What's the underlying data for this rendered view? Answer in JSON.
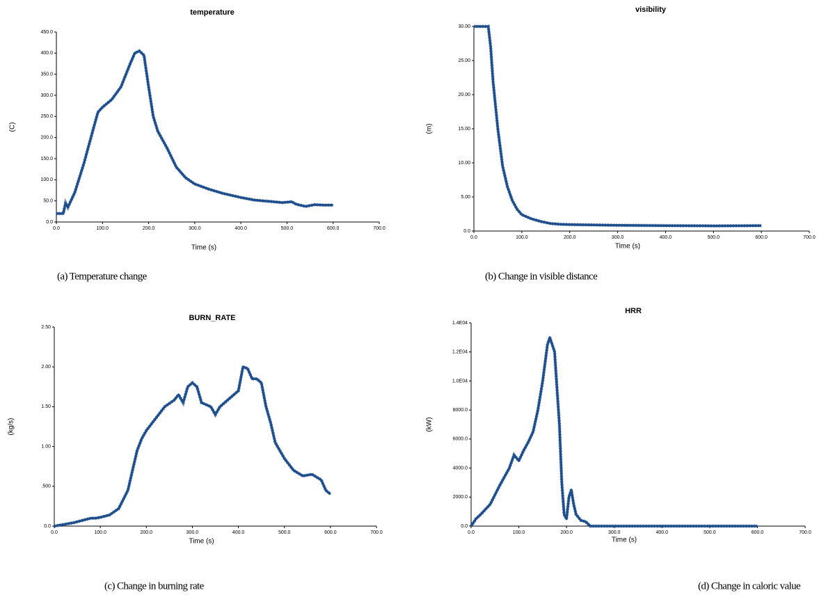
{
  "chart_data": [
    {
      "type": "line",
      "title": "temperature",
      "xlabel": "Time (s)",
      "ylabel": "(C)",
      "caption": "(a) Temperature change",
      "color": "#1f4e8c",
      "x": [
        0,
        15,
        20,
        25,
        40,
        60,
        80,
        90,
        100,
        120,
        140,
        160,
        170,
        180,
        190,
        200,
        210,
        220,
        240,
        260,
        280,
        300,
        330,
        360,
        400,
        430,
        460,
        490,
        510,
        520,
        540,
        560,
        580,
        600
      ],
      "values": [
        20,
        20,
        45,
        35,
        70,
        140,
        220,
        260,
        272,
        290,
        320,
        375,
        400,
        405,
        395,
        320,
        250,
        215,
        175,
        130,
        105,
        90,
        78,
        68,
        58,
        52,
        49,
        46,
        48,
        42,
        37,
        41,
        40,
        40
      ],
      "xlim": [
        0,
        700
      ],
      "ylim": [
        0,
        450
      ],
      "xticks": [
        {
          "value": 0,
          "label": "0.0"
        },
        {
          "value": 100,
          "label": "100.0"
        },
        {
          "value": 200,
          "label": "200.0"
        },
        {
          "value": 300,
          "label": "300.0"
        },
        {
          "value": 400,
          "label": "400.0"
        },
        {
          "value": 500,
          "label": "500.0"
        },
        {
          "value": 600,
          "label": "600.0"
        },
        {
          "value": 700,
          "label": "700.0"
        }
      ],
      "yticks": [
        {
          "value": 0,
          "label": "0.0"
        },
        {
          "value": 50,
          "label": "50.0"
        },
        {
          "value": 100,
          "label": "100.0"
        },
        {
          "value": 150,
          "label": "150.0"
        },
        {
          "value": 200,
          "label": "200.0"
        },
        {
          "value": 250,
          "label": "250.0"
        },
        {
          "value": 300,
          "label": "300.0"
        },
        {
          "value": 350,
          "label": "350.0"
        },
        {
          "value": 400,
          "label": "400.0"
        },
        {
          "value": 450,
          "label": "450.0"
        }
      ]
    },
    {
      "type": "line",
      "title": "visibility",
      "xlabel": "Time (s)",
      "ylabel": "(m)",
      "caption": "(b) Change in visible distance",
      "color": "#1f4e8c",
      "x": [
        0,
        10,
        20,
        30,
        35,
        40,
        50,
        60,
        70,
        80,
        90,
        100,
        120,
        140,
        160,
        180,
        200,
        250,
        300,
        400,
        500,
        600
      ],
      "values": [
        30,
        30,
        30,
        30,
        27,
        22,
        15,
        9.5,
        6.5,
        4.5,
        3.2,
        2.4,
        1.8,
        1.4,
        1.1,
        1.0,
        0.95,
        0.9,
        0.85,
        0.8,
        0.75,
        0.8
      ],
      "xlim": [
        0,
        700
      ],
      "ylim": [
        0,
        30
      ],
      "xticks": [
        {
          "value": 0,
          "label": "0.0"
        },
        {
          "value": 100,
          "label": "100.0"
        },
        {
          "value": 200,
          "label": "200.0"
        },
        {
          "value": 300,
          "label": "300.0"
        },
        {
          "value": 400,
          "label": "400.0"
        },
        {
          "value": 500,
          "label": "500.0"
        },
        {
          "value": 600,
          "label": "600.0"
        },
        {
          "value": 700,
          "label": "700.0"
        }
      ],
      "yticks": [
        {
          "value": 0,
          "label": "0.0"
        },
        {
          "value": 5,
          "label": "5.00"
        },
        {
          "value": 10,
          "label": "10.00"
        },
        {
          "value": 15,
          "label": "15.00"
        },
        {
          "value": 20,
          "label": "20.00"
        },
        {
          "value": 25,
          "label": "25.00"
        },
        {
          "value": 30,
          "label": "30.00"
        }
      ]
    },
    {
      "type": "line",
      "title": "BURN_RATE",
      "xlabel": "Time (s)",
      "ylabel": "(kg/s)",
      "caption": "(c) Change in burning rate",
      "color": "#1f4e8c",
      "x": [
        0,
        20,
        40,
        60,
        80,
        90,
        100,
        120,
        140,
        160,
        170,
        180,
        190,
        200,
        220,
        240,
        260,
        270,
        280,
        290,
        300,
        310,
        320,
        340,
        350,
        360,
        380,
        400,
        410,
        420,
        430,
        440,
        450,
        460,
        470,
        480,
        500,
        520,
        540,
        560,
        580,
        590,
        600
      ],
      "values": [
        0,
        0.02,
        0.04,
        0.07,
        0.1,
        0.1,
        0.11,
        0.14,
        0.22,
        0.45,
        0.7,
        0.95,
        1.1,
        1.2,
        1.35,
        1.5,
        1.58,
        1.65,
        1.55,
        1.75,
        1.8,
        1.75,
        1.55,
        1.5,
        1.4,
        1.5,
        1.6,
        1.7,
        2.0,
        1.98,
        1.85,
        1.85,
        1.8,
        1.5,
        1.3,
        1.05,
        0.85,
        0.7,
        0.63,
        0.65,
        0.58,
        0.45,
        0.4
      ],
      "xlim": [
        0,
        700
      ],
      "ylim": [
        0,
        2.5
      ],
      "xticks": [
        {
          "value": 0,
          "label": "0.0"
        },
        {
          "value": 100,
          "label": "100.0"
        },
        {
          "value": 200,
          "label": "200.0"
        },
        {
          "value": 300,
          "label": "300.0"
        },
        {
          "value": 400,
          "label": "400.0"
        },
        {
          "value": 500,
          "label": "500.0"
        },
        {
          "value": 600,
          "label": "600.0"
        },
        {
          "value": 700,
          "label": "700.0"
        }
      ],
      "yticks": [
        {
          "value": 0,
          "label": "0.0"
        },
        {
          "value": 0.5,
          "label": ".500"
        },
        {
          "value": 1,
          "label": "1.00"
        },
        {
          "value": 1.5,
          "label": "1.50"
        },
        {
          "value": 2,
          "label": "2.00"
        },
        {
          "value": 2.5,
          "label": "2.50"
        }
      ]
    },
    {
      "type": "line",
      "title": "HRR",
      "xlabel": "Time (s)",
      "ylabel": "(kW)",
      "caption": "(d) Change in caloric value",
      "color": "#1f4e8c",
      "x": [
        0,
        10,
        20,
        40,
        60,
        80,
        90,
        100,
        110,
        120,
        130,
        140,
        150,
        160,
        165,
        170,
        175,
        180,
        185,
        190,
        195,
        200,
        205,
        210,
        215,
        220,
        230,
        240,
        250,
        300,
        400,
        500,
        600
      ],
      "values": [
        0,
        500,
        800,
        1500,
        2800,
        4000,
        4900,
        4500,
        5200,
        5800,
        6500,
        8000,
        10000,
        12500,
        13000,
        12500,
        12000,
        9500,
        7000,
        3000,
        800,
        500,
        2000,
        2500,
        1500,
        800,
        400,
        300,
        0,
        0,
        0,
        0,
        0
      ],
      "xlim": [
        0,
        700
      ],
      "ylim": [
        0,
        14000
      ],
      "xticks": [
        {
          "value": 0,
          "label": "0.0"
        },
        {
          "value": 100,
          "label": "100.0"
        },
        {
          "value": 200,
          "label": "200.0"
        },
        {
          "value": 300,
          "label": "300.0"
        },
        {
          "value": 400,
          "label": "400.0"
        },
        {
          "value": 500,
          "label": "500.0"
        },
        {
          "value": 600,
          "label": "600.0"
        },
        {
          "value": 700,
          "label": "700.0"
        }
      ],
      "yticks": [
        {
          "value": 0,
          "label": "0.0"
        },
        {
          "value": 2000,
          "label": "2000.0"
        },
        {
          "value": 4000,
          "label": "4000.0"
        },
        {
          "value": 6000,
          "label": "6000.0"
        },
        {
          "value": 8000,
          "label": "8000.0"
        },
        {
          "value": 10000,
          "label": "1.0E04"
        },
        {
          "value": 12000,
          "label": "1.2E04"
        },
        {
          "value": 14000,
          "label": "1.4E04"
        }
      ]
    }
  ]
}
